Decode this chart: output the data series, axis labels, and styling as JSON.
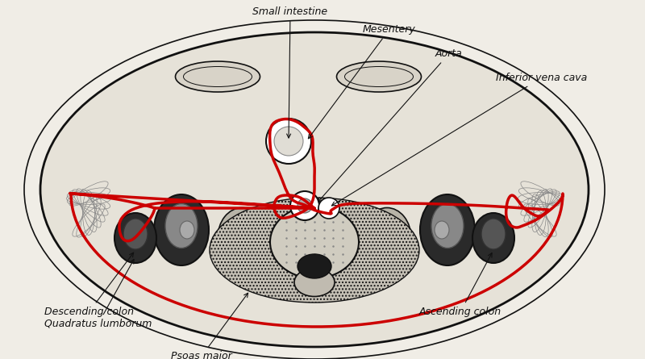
{
  "background_color": "#f0ede6",
  "peritoneum_color": "#cc0000",
  "peritoneum_linewidth": 2.5,
  "annotation_fontsize": 9,
  "annotation_fontstyle": "italic",
  "figsize": [
    8.0,
    4.45
  ],
  "dpi": 100,
  "labels": {
    "small_intestine": "Small intestine",
    "mesentery": "Mesentery",
    "aorta": "Aorta",
    "inferior_vena_cava": "Inferior vena cava",
    "descending_colon": "Descending colon",
    "quadratus_lumborum": "Quadratus lumborum",
    "psoas_major": "Psoas major",
    "ascending_colon": "Ascending colon"
  }
}
